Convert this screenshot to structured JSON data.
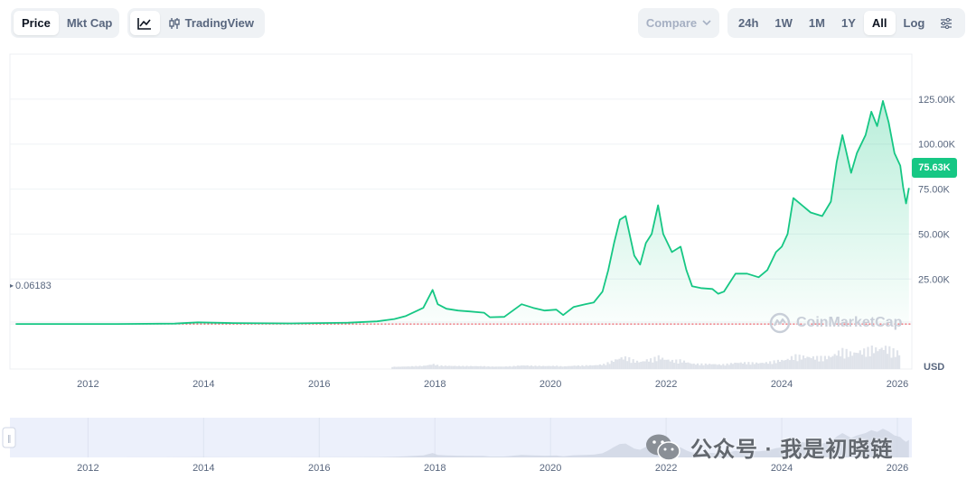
{
  "toolbar": {
    "view_tabs": [
      "Price",
      "Mkt Cap"
    ],
    "active_view": "Price",
    "tradingview_label": "TradingView",
    "compare_label": "Compare",
    "ranges": [
      "24h",
      "1W",
      "1M",
      "1Y",
      "All"
    ],
    "active_range": "All",
    "log_label": "Log"
  },
  "chart_data": {
    "type": "line",
    "title": "",
    "xlabel": "",
    "ylabel": "",
    "y_unit": "USD",
    "x_ticks": [
      "2012",
      "2014",
      "2016",
      "2018",
      "2020",
      "2022",
      "2024",
      "2026"
    ],
    "y_ticks": [
      "25.00K",
      "50.00K",
      "75.00K",
      "100.00K",
      "125.00K"
    ],
    "y_tick_values": [
      25000,
      50000,
      75000,
      100000,
      125000
    ],
    "ylim": [
      -25000,
      150000
    ],
    "xlim": [
      2010.65,
      2026.25
    ],
    "grid": true,
    "start_price_label": "0.06183",
    "current_price_label": "75.63K",
    "line_color": "#16c784",
    "baseline_color": "#ea3943",
    "series": [
      {
        "x": [
          2010.75,
          2011.5,
          2012.5,
          2013.5,
          2013.9,
          2014.5,
          2015.5,
          2016.5,
          2017.0,
          2017.3,
          2017.5,
          2017.8,
          2017.96,
          2018.05,
          2018.2,
          2018.4,
          2018.6,
          2018.85,
          2018.95,
          2019.2,
          2019.5,
          2019.7,
          2019.9,
          2020.1,
          2020.22,
          2020.4,
          2020.6,
          2020.75,
          2020.9,
          2021.0,
          2021.1,
          2021.2,
          2021.3,
          2021.45,
          2021.55,
          2021.65,
          2021.75,
          2021.86,
          2021.95,
          2022.1,
          2022.25,
          2022.35,
          2022.45,
          2022.6,
          2022.8,
          2022.9,
          2023.0,
          2023.1,
          2023.2,
          2023.4,
          2023.6,
          2023.75,
          2023.9,
          2024.0,
          2024.1,
          2024.2,
          2024.5,
          2024.7,
          2024.85,
          2024.95,
          2025.05,
          2025.2,
          2025.3,
          2025.45,
          2025.55,
          2025.65,
          2025.75,
          2025.85,
          2025.95,
          2026.05,
          2026.1,
          2026.15,
          2026.2
        ],
        "y": [
          0.06,
          1,
          10,
          200,
          900,
          500,
          300,
          700,
          1500,
          2800,
          4500,
          9000,
          19000,
          11000,
          8500,
          7500,
          7000,
          6300,
          3800,
          4000,
          11000,
          9000,
          7500,
          8000,
          5000,
          9500,
          11000,
          12000,
          18000,
          30000,
          45000,
          58000,
          60000,
          38000,
          33000,
          45000,
          50000,
          66000,
          50000,
          40000,
          43000,
          30000,
          21000,
          20000,
          19500,
          16800,
          18000,
          23000,
          28000,
          28000,
          26000,
          30000,
          40000,
          43000,
          50000,
          70000,
          62000,
          60000,
          68000,
          90000,
          105000,
          84000,
          95000,
          105000,
          118000,
          110000,
          124000,
          112000,
          95000,
          88000,
          76000,
          67000,
          75630
        ]
      }
    ]
  },
  "navigator": {
    "x_ticks": [
      "2012",
      "2014",
      "2016",
      "2018",
      "2020",
      "2022",
      "2024",
      "2026"
    ]
  },
  "watermark": {
    "text": "CoinMarketCap"
  },
  "overlay": {
    "text": "公众号 · 我是初晓链"
  }
}
